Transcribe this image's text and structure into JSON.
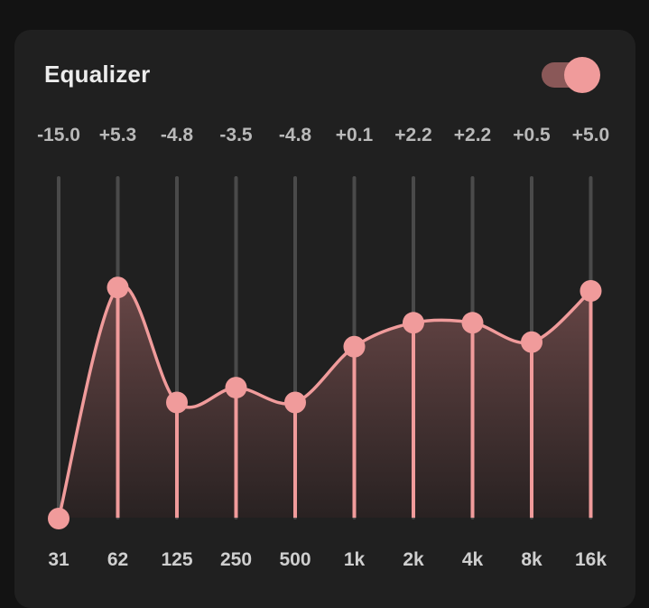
{
  "title": "Equalizer",
  "enabled": true,
  "colors": {
    "accent": "#f09b9b",
    "panel": "#202020",
    "background": "#131313",
    "track": "#4a4a4a",
    "toggle_track": "#8a5858"
  },
  "icons": {
    "toggle": "toggle-switch-icon"
  },
  "bands": [
    {
      "freq": "31",
      "gain_label": "-15.0",
      "gain": -15.0
    },
    {
      "freq": "62",
      "gain_label": "+5.3",
      "gain": 5.3
    },
    {
      "freq": "125",
      "gain_label": "-4.8",
      "gain": -4.8
    },
    {
      "freq": "250",
      "gain_label": "-3.5",
      "gain": -3.5
    },
    {
      "freq": "500",
      "gain_label": "-4.8",
      "gain": -4.8
    },
    {
      "freq": "1k",
      "gain_label": "+0.1",
      "gain": 0.1
    },
    {
      "freq": "2k",
      "gain_label": "+2.2",
      "gain": 2.2
    },
    {
      "freq": "4k",
      "gain_label": "+2.2",
      "gain": 2.2
    },
    {
      "freq": "8k",
      "gain_label": "+0.5",
      "gain": 0.5
    },
    {
      "freq": "16k",
      "gain_label": "+5.0",
      "gain": 5.0
    }
  ],
  "gain_range": [
    -15,
    15
  ]
}
